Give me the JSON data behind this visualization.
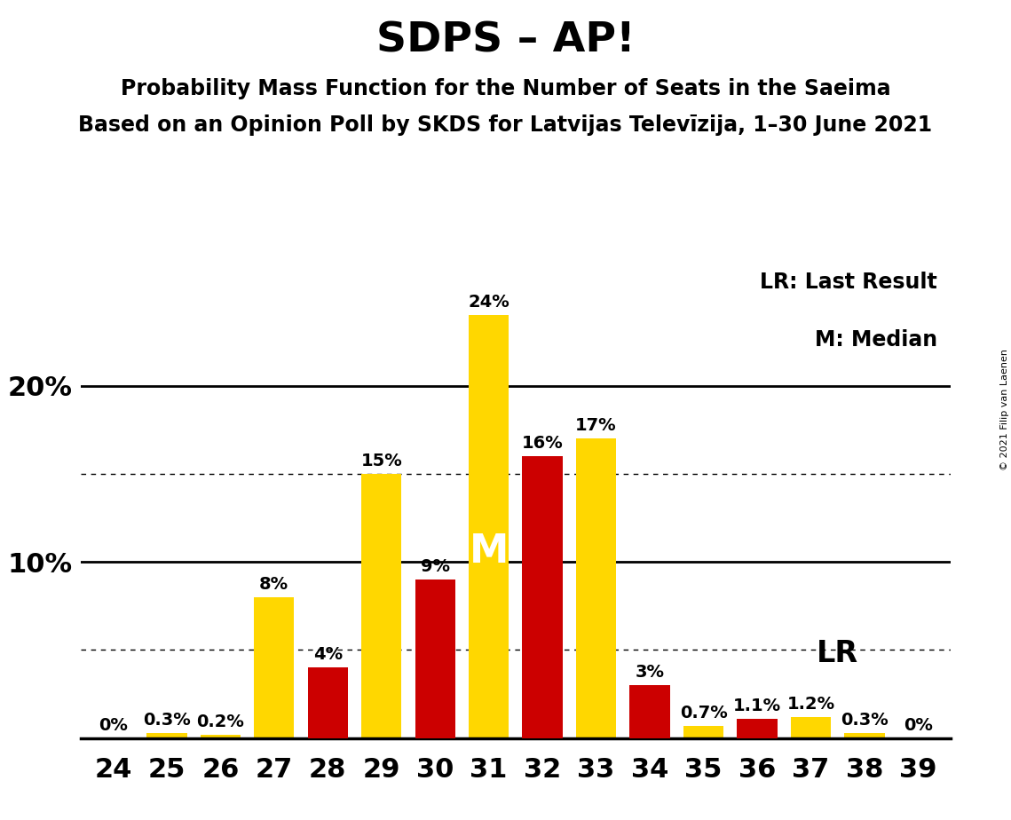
{
  "title": "SDPS – AP!",
  "subtitle1": "Probability Mass Function for the Number of Seats in the Saeima",
  "subtitle2": "Based on an Opinion Poll by SKDS for Latvijas Televīzija, 1–30 June 2021",
  "copyright": "© 2021 Filip van Laenen",
  "seats": [
    24,
    25,
    26,
    27,
    28,
    29,
    30,
    31,
    32,
    33,
    34,
    35,
    36,
    37,
    38,
    39
  ],
  "yellow_values": [
    0.0,
    0.3,
    0.2,
    8.0,
    0.0,
    15.0,
    0.0,
    24.0,
    0.0,
    17.0,
    0.0,
    0.7,
    1.1,
    1.2,
    0.3,
    0.0
  ],
  "red_values": [
    0.0,
    0.0,
    0.0,
    0.0,
    4.0,
    0.0,
    9.0,
    0.0,
    16.0,
    0.0,
    3.0,
    0.0,
    1.1,
    0.0,
    0.0,
    0.0
  ],
  "yellow_labels": [
    "0%",
    "0.3%",
    "0.2%",
    "8%",
    "",
    "15%",
    "",
    "24%",
    "",
    "17%",
    "",
    "0.7%",
    "1.1%",
    "1.2%",
    "0.3%",
    "0%"
  ],
  "red_labels": [
    "",
    "",
    "",
    "",
    "4%",
    "",
    "9%",
    "",
    "16%",
    "",
    "3%",
    "",
    "",
    "",
    "",
    ""
  ],
  "median_seat": 31,
  "lr_seat": 35,
  "yellow_color": "#FFD700",
  "red_color": "#CC0000",
  "background_color": "#FFFFFF",
  "ylim": [
    0,
    27
  ],
  "bar_width": 0.75,
  "label_fontsize": 14,
  "tick_fontsize": 22,
  "title_fontsize": 34,
  "subtitle_fontsize": 17,
  "axis_label_fontsize": 22,
  "legend_fontsize": 17,
  "median_label_fontsize": 32,
  "lr_label_fontsize": 24
}
